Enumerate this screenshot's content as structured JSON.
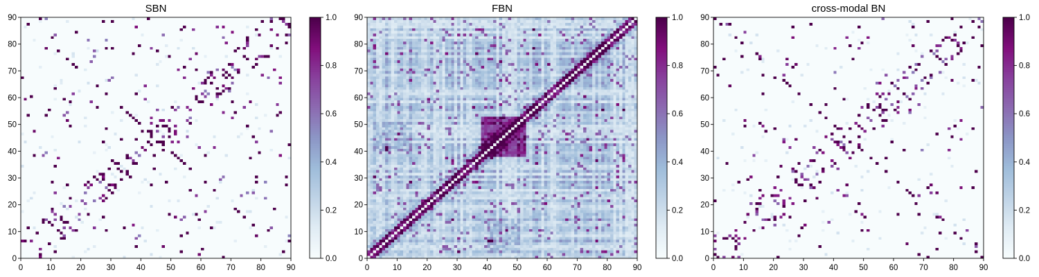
{
  "figure": {
    "type": "heatmap",
    "colormap": [
      "#f7fcfd",
      "#e0ecf4",
      "#bfd3e6",
      "#9ebcda",
      "#8c96c6",
      "#8c6bb1",
      "#88419d",
      "#810f7c",
      "#4d004b"
    ],
    "colorbar_ticks": [
      "0.0",
      "0.2",
      "0.4",
      "0.6",
      "0.8",
      "1.0"
    ]
  },
  "chart_data": [
    {
      "type": "heatmap",
      "title": "SBN",
      "xlim": [
        0,
        90
      ],
      "ylim": [
        0,
        90
      ],
      "xticks": [
        "0",
        "10",
        "20",
        "30",
        "40",
        "50",
        "60",
        "70",
        "80",
        "90"
      ],
      "yticks": [
        "0",
        "10",
        "20",
        "30",
        "40",
        "50",
        "60",
        "70",
        "80",
        "90"
      ],
      "colorbar_range": [
        0.0,
        1.0
      ],
      "grid_size": 90,
      "pattern": "sparse symmetric connectivity matrix; mostly near 0 with scattered strong (0.8-1.0) connections clustered near the anti-diagonal regions and around (45,45)"
    },
    {
      "type": "heatmap",
      "title": "FBN",
      "xlim": [
        0,
        90
      ],
      "ylim": [
        0,
        90
      ],
      "xticks": [
        "0",
        "10",
        "20",
        "30",
        "40",
        "50",
        "60",
        "70",
        "80",
        "90"
      ],
      "yticks": [
        "0",
        "10",
        "20",
        "30",
        "40",
        "50",
        "60",
        "70",
        "80",
        "90"
      ],
      "colorbar_range": [
        0.0,
        1.0
      ],
      "grid_size": 90,
      "pattern": "dense symmetric connectivity matrix with strong diagonal band and a bright block around rows/cols 40-50"
    },
    {
      "type": "heatmap",
      "title": "cross-modal BN",
      "xlim": [
        0,
        90
      ],
      "ylim": [
        0,
        90
      ],
      "xticks": [
        "0",
        "10",
        "20",
        "30",
        "40",
        "50",
        "60",
        "70",
        "80",
        "90"
      ],
      "yticks": [
        "0",
        "10",
        "20",
        "30",
        "40",
        "50",
        "60",
        "70",
        "80",
        "90"
      ],
      "colorbar_range": [
        0.0,
        1.0
      ],
      "grid_size": 90,
      "pattern": "very sparse symmetric matrix; isolated strong connections (~1.0) on near-zero background"
    }
  ]
}
